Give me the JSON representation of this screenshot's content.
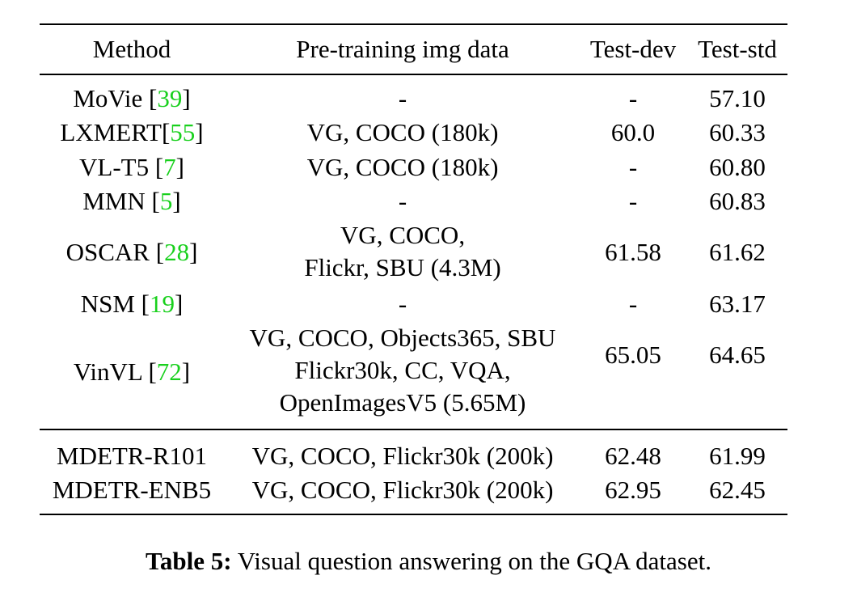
{
  "table": {
    "headers": {
      "method": "Method",
      "pretrain": "Pre-training img data",
      "testdev": "Test-dev",
      "teststd": "Test-std"
    },
    "rows": [
      {
        "method": "MoVie [",
        "cite": "39",
        "close": "]",
        "data": [
          "-"
        ],
        "testdev": "-",
        "teststd": "57.10"
      },
      {
        "method": "LXMERT[",
        "cite": "55",
        "close": "]",
        "data": [
          "VG, COCO (180k)"
        ],
        "testdev": "60.0",
        "teststd": "60.33"
      },
      {
        "method": "VL-T5 [",
        "cite": "7",
        "close": "]",
        "data": [
          "VG, COCO (180k)"
        ],
        "testdev": "-",
        "teststd": "60.80"
      },
      {
        "method": "MMN [",
        "cite": "5",
        "close": "]",
        "data": [
          "-"
        ],
        "testdev": "-",
        "teststd": "60.83"
      },
      {
        "method": "OSCAR [",
        "cite": "28",
        "close": "]",
        "data": [
          "VG, COCO,",
          "Flickr, SBU (4.3M)"
        ],
        "testdev": "61.58",
        "teststd": "61.62"
      },
      {
        "method": "NSM [",
        "cite": "19",
        "close": "]",
        "data": [
          "-"
        ],
        "testdev": "-",
        "teststd": "63.17"
      },
      {
        "method": "VinVL [",
        "cite": "72",
        "close": "]",
        "data": [
          "VG, COCO, Objects365, SBU",
          "Flickr30k, CC, VQA,",
          "OpenImagesV5 (5.65M)"
        ],
        "testdev": "65.05",
        "teststd": "64.65"
      },
      {
        "method": "MDETR-R101",
        "cite": "",
        "close": "",
        "data": [
          "VG, COCO, Flickr30k (200k)"
        ],
        "testdev": "62.48",
        "teststd": "61.99"
      },
      {
        "method": "MDETR-ENB5",
        "cite": "",
        "close": "",
        "data": [
          "VG, COCO, Flickr30k (200k)"
        ],
        "testdev": "62.95",
        "teststd": "62.45"
      }
    ]
  },
  "caption": {
    "label": "Table 5:",
    "text": " Visual question answering on the GQA dataset."
  },
  "colors": {
    "citation": "#19d01d",
    "text": "#000000"
  }
}
